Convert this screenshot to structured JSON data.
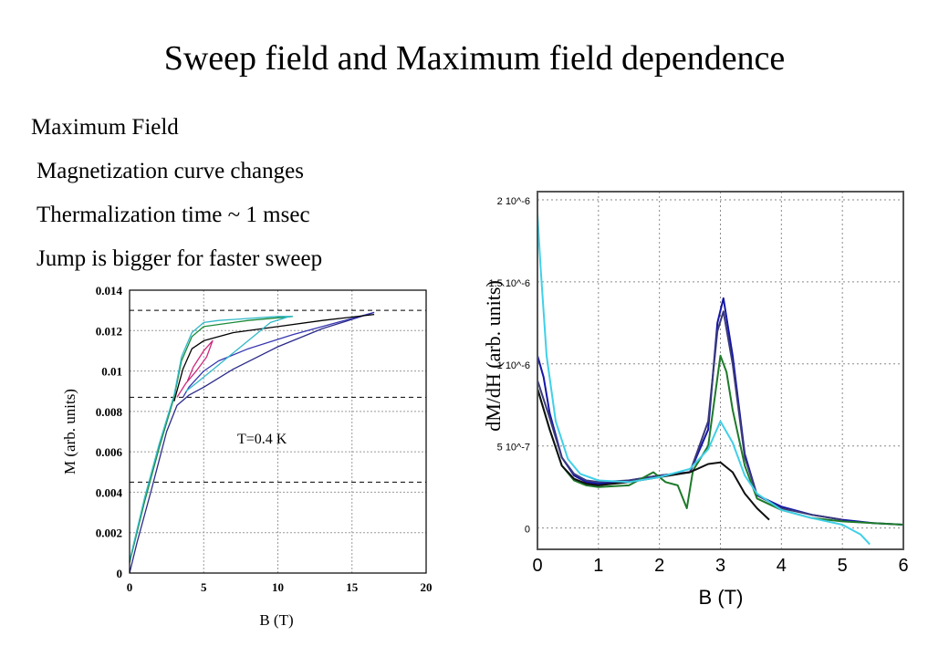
{
  "title": "Sweep field and Maximum field dependence",
  "bullets": [
    "Maximum Field",
    "Magnetization curve changes",
    "Thermalization time ~ 1 msec",
    "Jump is bigger for faster sweep"
  ],
  "chart_data": [
    {
      "type": "line",
      "xlabel": "B (T)",
      "ylabel": "M (arb. units)",
      "annotation": "T=0.4 K",
      "xlim": [
        0,
        20
      ],
      "ylim": [
        0,
        0.014
      ],
      "x_ticks": [
        0,
        5,
        10,
        15,
        20
      ],
      "y_ticks": [
        0,
        0.002,
        0.004,
        0.006,
        0.008,
        0.01,
        0.012,
        0.014
      ],
      "y_tick_labels": [
        "0",
        "0.002",
        "0.004",
        "0.006",
        "0.008",
        "0.01",
        "0.012",
        "0.014"
      ],
      "grid": true,
      "reference_lines_y": [
        0.013,
        0.0087,
        0.0045
      ],
      "series": [
        {
          "color": "#2a2a8a",
          "x": [
            0,
            0.5,
            1.5,
            2.5,
            3.2,
            4,
            5,
            7,
            10,
            13,
            16.5
          ],
          "y": [
            0,
            0.0015,
            0.0042,
            0.007,
            0.0083,
            0.0088,
            0.0092,
            0.0101,
            0.0112,
            0.0121,
            0.0129
          ]
        },
        {
          "color": "#3535b0",
          "x": [
            16.5,
            14,
            11,
            8,
            6,
            5,
            4,
            3.6
          ],
          "y": [
            0.0129,
            0.0124,
            0.0118,
            0.0111,
            0.0105,
            0.01,
            0.0092,
            0.0087
          ]
        },
        {
          "color": "#000000",
          "x": [
            3,
            3.6,
            4.2,
            5,
            5.5,
            7,
            10,
            13,
            16.5
          ],
          "y": [
            0.0085,
            0.0101,
            0.0111,
            0.0115,
            0.0116,
            0.0119,
            0.0122,
            0.0125,
            0.0128
          ]
        },
        {
          "color": "#cc2b7d",
          "x": [
            3.2,
            3.8,
            4.5,
            5.2,
            5.6,
            5,
            4.3,
            3.9
          ],
          "y": [
            0.0087,
            0.0094,
            0.01,
            0.0107,
            0.0115,
            0.011,
            0.0102,
            0.0095
          ]
        },
        {
          "color": "#1a8a3a",
          "x": [
            0,
            1,
            2,
            3,
            3.5,
            4.2,
            5,
            6,
            8,
            11
          ],
          "y": [
            0.0005,
            0.0035,
            0.0062,
            0.0087,
            0.0105,
            0.0117,
            0.0122,
            0.0123,
            0.0125,
            0.0127
          ]
        },
        {
          "color": "#30b8c8",
          "x": [
            0,
            1,
            2,
            3,
            3.5,
            4.2,
            5,
            6,
            8,
            10,
            11
          ],
          "y": [
            0.0006,
            0.0037,
            0.0064,
            0.0088,
            0.0107,
            0.0119,
            0.0124,
            0.0125,
            0.0126,
            0.0127,
            0.0127
          ]
        },
        {
          "color": "#30b8c8",
          "x": [
            10.8,
            9.5,
            8.5,
            7.5,
            6.5,
            5.5,
            4.5,
            3.8
          ],
          "y": [
            0.0127,
            0.0124,
            0.0118,
            0.0112,
            0.0106,
            0.01,
            0.0094,
            0.009
          ]
        }
      ]
    },
    {
      "type": "line",
      "xlabel": "B (T)",
      "ylabel": "dM/dH (arb. units)",
      "xlim": [
        0,
        6
      ],
      "x_ticks": [
        0,
        1,
        2,
        3,
        4,
        5,
        6
      ],
      "y_tick_labels": [
        "2 10^-6",
        "1.5 10^-6",
        "1 10^-6",
        "5 10^-7",
        "0"
      ],
      "y_ticks": [
        2e-06,
        1.5e-06,
        1e-06,
        5e-07,
        0
      ],
      "ylim": [
        -1.3e-07,
        2.05e-06
      ],
      "grid": true,
      "series": [
        {
          "color": "#1515a8",
          "x": [
            0,
            0.1,
            0.2,
            0.4,
            0.6,
            0.8,
            1,
            1.5,
            2,
            2.5,
            2.8,
            2.95,
            3.05,
            3.2,
            3.4,
            3.6,
            4,
            4.5,
            5,
            5.5,
            6
          ],
          "y": [
            1.05e-06,
            9.2e-07,
            7e-07,
            4.3e-07,
            3.2e-07,
            2.8e-07,
            2.7e-07,
            2.9e-07,
            3.2e-07,
            3.4e-07,
            6e-07,
            1.25e-06,
            1.4e-06,
            1.05e-06,
            4.5e-07,
            2e-07,
            1.3e-07,
            8e-08,
            5e-08,
            3e-08,
            2e-08
          ]
        },
        {
          "color": "#3a3a7a",
          "x": [
            0,
            0.2,
            0.4,
            0.6,
            0.8,
            1,
            1.5,
            2,
            2.5,
            2.8,
            2.95,
            3.05,
            3.2,
            3.4,
            3.6,
            4,
            4.5,
            5
          ],
          "y": [
            9e-07,
            6.7e-07,
            4.3e-07,
            3.3e-07,
            2.9e-07,
            2.8e-07,
            2.9e-07,
            3.2e-07,
            3.4e-07,
            6.5e-07,
            1.2e-06,
            1.32e-06,
            1e-06,
            4.3e-07,
            2e-07,
            1.2e-07,
            8e-08,
            5e-08
          ]
        },
        {
          "color": "#1d7a2a",
          "x": [
            0,
            0.2,
            0.4,
            0.6,
            0.8,
            1,
            1.5,
            1.9,
            2.1,
            2.3,
            2.45,
            2.55,
            2.8,
            3,
            3.1,
            3.2,
            3.4,
            3.6,
            4,
            4.5,
            5,
            5.5,
            6
          ],
          "y": [
            8.5e-07,
            6e-07,
            3.8e-07,
            2.9e-07,
            2.6e-07,
            2.5e-07,
            2.6e-07,
            3.4e-07,
            2.8e-07,
            2.6e-07,
            1.2e-07,
            3.5e-07,
            5e-07,
            1.05e-06,
            9.5e-07,
            7.2e-07,
            3.8e-07,
            1.8e-07,
            1.1e-07,
            6e-08,
            4e-08,
            3e-08,
            2e-08
          ]
        },
        {
          "color": "#101010",
          "x": [
            0,
            0.2,
            0.4,
            0.6,
            0.8,
            1,
            1.5,
            2,
            2.5,
            2.8,
            3,
            3.2,
            3.4,
            3.6,
            3.8
          ],
          "y": [
            8.5e-07,
            6e-07,
            3.8e-07,
            3e-07,
            2.7e-07,
            2.6e-07,
            2.8e-07,
            3.1e-07,
            3.4e-07,
            3.9e-07,
            4e-07,
            3.4e-07,
            2.1e-07,
            1.2e-07,
            5e-08
          ]
        },
        {
          "color": "#40d0e8",
          "x": [
            0,
            0.05,
            0.15,
            0.3,
            0.5,
            0.7,
            1,
            1.5,
            2,
            2.5,
            2.8,
            3,
            3.2,
            3.4,
            3.6,
            4,
            4.5,
            5,
            5.3,
            5.45
          ],
          "y": [
            1.92e-06,
            1.6e-06,
            1.05e-06,
            6.5e-07,
            4.2e-07,
            3.3e-07,
            2.9e-07,
            2.8e-07,
            3.1e-07,
            3.6e-07,
            4.8e-07,
            6.5e-07,
            5.2e-07,
            3.2e-07,
            2.1e-07,
            1.1e-07,
            6e-08,
            2e-08,
            -4e-08,
            -1e-07
          ]
        }
      ]
    }
  ]
}
